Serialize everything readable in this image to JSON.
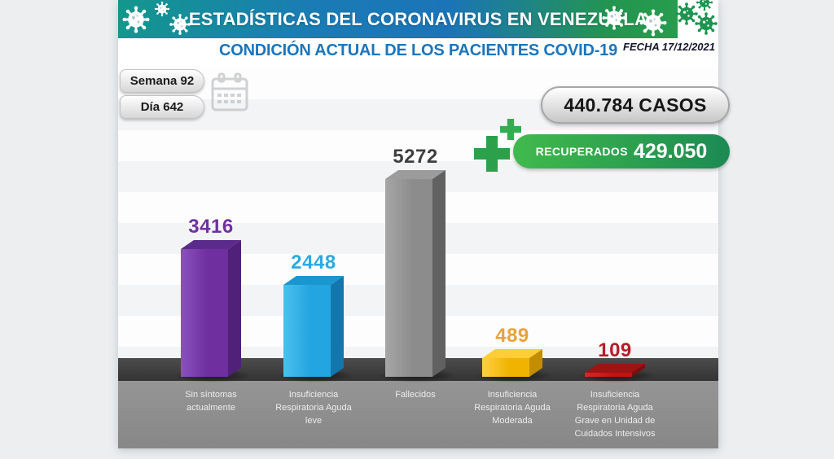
{
  "header": {
    "banner_title": "ESTADÍSTICAS DEL CORONAVIRUS EN VENEZUELA",
    "subtitle": "CONDICIÓN ACTUAL DE LOS PACIENTES COVID-19",
    "date_label": "FECHA 17/12/2021"
  },
  "counters": {
    "week_label": "Semana 92",
    "day_label": "Día 642",
    "cases_label": "440.784 CASOS",
    "recovered_label": "RECUPERADOS",
    "recovered_value": "429.050"
  },
  "icons": {
    "calendar": "calendar-icon",
    "virus": "virus-icon",
    "medical_cross": "medical-cross-icon"
  },
  "colors": {
    "banner_gradient": [
      "#13978d",
      "#1b74b8",
      "#2aa14e"
    ],
    "subtitle_blue": "#1b75bc",
    "recovered_green_light": "#41ba4c",
    "recovered_green_dark": "#1c8a52",
    "cross_green": "#2ca04a",
    "floor_dark": "#3f3f3f",
    "floor_face": "#8e8e8e"
  },
  "chart_data": {
    "type": "bar",
    "title": "CONDICIÓN ACTUAL DE LOS PACIENTES COVID-19",
    "categories": [
      "Sin síntomas actualmente",
      "Insuficiencia Respiratoria Aguda leve",
      "Fallecidos",
      "Insuficiencia Respiratoria Aguda Moderada",
      "Insuficiencia Respiratoria Aguda Grave en Unidad de Cuidados Intensivos"
    ],
    "values": [
      3416,
      2448,
      5272,
      489,
      109
    ],
    "ylim": [
      0,
      5272
    ],
    "grid": false,
    "legend": false,
    "data_labels": true,
    "bars": [
      {
        "id": "sin-sintomas",
        "display": "3416",
        "label_lines": [
          "Sin síntomas",
          "actualmente"
        ],
        "front": "#6f2f9f",
        "front_light": "#8a52bd",
        "top": "#5b2b8c",
        "side": "#512078",
        "value_color": "#7030a0"
      },
      {
        "id": "ira-leve",
        "display": "2448",
        "label_lines": [
          "Insuficiencia",
          "Respiratoria Aguda",
          "leve"
        ],
        "front": "#22a5e0",
        "front_light": "#4cc0ee",
        "top": "#1a97cf",
        "side": "#1377ae",
        "value_color": "#29abe2"
      },
      {
        "id": "fallecidos",
        "display": "5272",
        "label_lines": [
          "Fallecidos"
        ],
        "front": "#8c8c8c",
        "front_light": "#a6a6a6",
        "top": "#9c9c9c",
        "side": "#616161",
        "value_color": "#3f3f3f"
      },
      {
        "id": "ira-moderada",
        "display": "489",
        "label_lines": [
          "Insuficiencia",
          "Respiratoria Aguda",
          "Moderada"
        ],
        "front": "#f0b400",
        "front_light": "#ffd042",
        "top": "#ffcd37",
        "side": "#c28e00",
        "value_color": "#e8a23b"
      },
      {
        "id": "ira-grave-uci",
        "display": "109",
        "label_lines": [
          "Insuficiencia",
          "Respiratoria Aguda",
          "Grave en Unidad de",
          "Cuidados Intensivos"
        ],
        "front": "#c41212",
        "front_light": "#d42a2a",
        "top": "#9c1414",
        "side": "#7d0e0e",
        "value_color": "#b41e28"
      }
    ]
  }
}
